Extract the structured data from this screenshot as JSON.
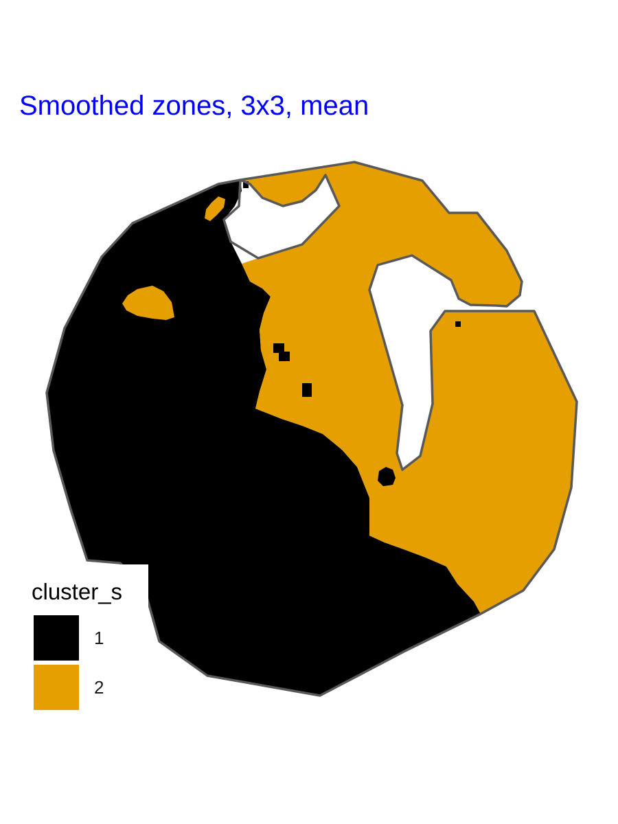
{
  "title": "Smoothed zones, 3x3, mean",
  "title_color": "#0000ff",
  "legend": {
    "title": "cluster_s",
    "items": [
      {
        "label": "1",
        "color": "#000000"
      },
      {
        "label": "2",
        "color": "#e69f00"
      }
    ]
  },
  "boundary_color": "#595959"
}
